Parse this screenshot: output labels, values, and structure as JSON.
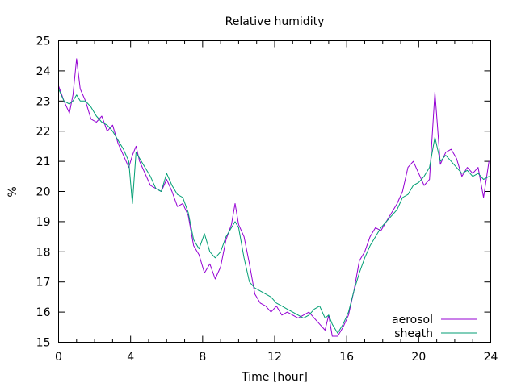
{
  "chart_data": {
    "type": "line",
    "title": "Relative humidity",
    "xlabel": "Time [hour]",
    "ylabel": "%",
    "xlim": [
      0,
      24
    ],
    "ylim": [
      15,
      25
    ],
    "xticks": [
      0,
      4,
      8,
      12,
      16,
      20,
      24
    ],
    "yticks": [
      15,
      16,
      17,
      18,
      19,
      20,
      21,
      22,
      23,
      24,
      25
    ],
    "grid": false,
    "legend_position": "bottom-right",
    "series": [
      {
        "name": "aerosol",
        "color": "#9400d3",
        "x": [
          0,
          0.3,
          0.6,
          0.8,
          1.0,
          1.2,
          1.5,
          1.8,
          2.1,
          2.4,
          2.7,
          3.0,
          3.3,
          3.6,
          3.9,
          4.1,
          4.3,
          4.5,
          4.8,
          5.1,
          5.4,
          5.7,
          6.0,
          6.3,
          6.6,
          6.9,
          7.2,
          7.5,
          7.8,
          8.1,
          8.4,
          8.7,
          9.0,
          9.3,
          9.6,
          9.8,
          10.0,
          10.3,
          10.6,
          10.9,
          11.2,
          11.5,
          11.8,
          12.1,
          12.4,
          12.7,
          13.0,
          13.3,
          13.6,
          13.9,
          14.2,
          14.5,
          14.8,
          15.0,
          15.2,
          15.5,
          15.8,
          16.1,
          16.4,
          16.7,
          17.0,
          17.3,
          17.6,
          17.9,
          18.2,
          18.5,
          18.8,
          19.1,
          19.4,
          19.7,
          20.0,
          20.3,
          20.6,
          20.9,
          21.2,
          21.5,
          21.8,
          22.1,
          22.4,
          22.7,
          23.0,
          23.3,
          23.6,
          23.9
        ],
        "y": [
          23.5,
          23.0,
          22.6,
          23.2,
          24.4,
          23.4,
          23.0,
          22.4,
          22.3,
          22.5,
          22.0,
          22.2,
          21.6,
          21.2,
          20.8,
          21.2,
          21.5,
          21.0,
          20.6,
          20.2,
          20.1,
          20.0,
          20.4,
          20.0,
          19.5,
          19.6,
          19.2,
          18.2,
          17.9,
          17.3,
          17.6,
          17.1,
          17.5,
          18.4,
          18.9,
          19.6,
          18.9,
          18.5,
          17.6,
          16.6,
          16.3,
          16.2,
          16.0,
          16.2,
          15.9,
          16.0,
          15.9,
          15.8,
          15.9,
          16.0,
          15.8,
          15.6,
          15.4,
          15.9,
          15.2,
          15.2,
          15.5,
          15.9,
          16.7,
          17.7,
          18.0,
          18.5,
          18.8,
          18.7,
          19.0,
          19.3,
          19.6,
          20.0,
          20.8,
          21.0,
          20.6,
          20.2,
          20.4,
          23.3,
          20.9,
          21.3,
          21.4,
          21.1,
          20.5,
          20.8,
          20.6,
          20.8,
          19.8,
          21.0
        ]
      },
      {
        "name": "sheath",
        "color": "#009e73",
        "x": [
          0,
          0.3,
          0.6,
          0.8,
          1.0,
          1.2,
          1.5,
          1.8,
          2.1,
          2.4,
          2.7,
          3.0,
          3.3,
          3.6,
          3.9,
          4.1,
          4.3,
          4.5,
          4.8,
          5.1,
          5.4,
          5.7,
          6.0,
          6.3,
          6.6,
          6.9,
          7.2,
          7.5,
          7.8,
          8.1,
          8.4,
          8.7,
          9.0,
          9.3,
          9.6,
          9.8,
          10.0,
          10.3,
          10.6,
          10.9,
          11.2,
          11.5,
          11.8,
          12.1,
          12.4,
          12.7,
          13.0,
          13.3,
          13.6,
          13.9,
          14.2,
          14.5,
          14.8,
          15.0,
          15.2,
          15.5,
          15.8,
          16.1,
          16.4,
          16.7,
          17.0,
          17.3,
          17.6,
          17.9,
          18.2,
          18.5,
          18.8,
          19.1,
          19.4,
          19.7,
          20.0,
          20.3,
          20.6,
          20.9,
          21.2,
          21.5,
          21.8,
          22.1,
          22.4,
          22.7,
          23.0,
          23.3,
          23.6,
          23.9
        ],
        "y": [
          23.4,
          23.0,
          22.9,
          23.0,
          23.2,
          23.0,
          23.0,
          22.8,
          22.5,
          22.3,
          22.2,
          22.0,
          21.7,
          21.4,
          21.0,
          19.6,
          21.3,
          21.1,
          20.8,
          20.5,
          20.1,
          20.0,
          20.6,
          20.2,
          19.9,
          19.8,
          19.3,
          18.4,
          18.1,
          18.6,
          18.0,
          17.8,
          18.0,
          18.5,
          18.8,
          19.0,
          18.8,
          17.8,
          17.0,
          16.8,
          16.7,
          16.6,
          16.5,
          16.3,
          16.2,
          16.1,
          16.0,
          15.9,
          15.8,
          15.9,
          16.1,
          16.2,
          15.8,
          15.9,
          15.6,
          15.3,
          15.6,
          16.0,
          16.7,
          17.3,
          17.8,
          18.2,
          18.5,
          18.8,
          19.0,
          19.2,
          19.4,
          19.8,
          19.9,
          20.2,
          20.3,
          20.5,
          20.8,
          21.8,
          21.0,
          21.2,
          21.0,
          20.8,
          20.6,
          20.7,
          20.5,
          20.6,
          20.4,
          20.5
        ]
      }
    ]
  }
}
